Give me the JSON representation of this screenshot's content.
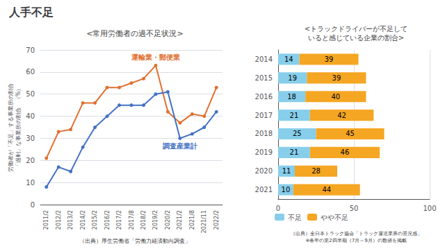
{
  "title": "人手不足",
  "chart_data": [
    {
      "type": "line",
      "title": "<常用労働者の過不足状況>",
      "ylabel": [
        "労働者が「不足」する事業所の割合",
        "「過剰」な事業所の割合　（%）"
      ],
      "source": "（出典）厚生労働省「労働力経済動向調査」",
      "categories": [
        "2011/2",
        "2012/2",
        "2013/2",
        "2014/2",
        "2015/2",
        "2016/2",
        "2017/2",
        "2017/8",
        "2018/2",
        "2019/2",
        "2020/2",
        "2021/2",
        "2021/8",
        "2021/11",
        "2022/2"
      ],
      "series": [
        {
          "name": "運輸業・郵便業",
          "color": "#e07030",
          "values": [
            21,
            33,
            34,
            46,
            46,
            53,
            53,
            55,
            57,
            63,
            42,
            37,
            41,
            40,
            53
          ]
        },
        {
          "name": "調査産業計",
          "color": "#4472c4",
          "values": [
            8,
            17,
            15,
            26,
            35,
            40,
            45,
            45,
            45,
            50,
            51,
            30,
            32,
            35,
            42
          ]
        }
      ],
      "marker": "circle",
      "ylim": [
        0,
        70
      ],
      "yticks": [
        0,
        10,
        20,
        30,
        40,
        50,
        60,
        70
      ],
      "grid": true
    },
    {
      "type": "bar",
      "orientation": "horizontal",
      "stacked": true,
      "title": "<トラックドライバーが不足して\nいると感じている企業の割合>",
      "source": "（出典）全日本トラック協会「トラック運送業界の景況感」\n※各年の第2四半期（7月～9月）の数値を掲載",
      "categories": [
        "2014",
        "2015",
        "2016",
        "2017",
        "2018",
        "2019",
        "2020",
        "2021"
      ],
      "series": [
        {
          "name": "不足",
          "color": "#87ceeb",
          "values": [
            14,
            19,
            18,
            21,
            25,
            21,
            11,
            10
          ]
        },
        {
          "name": "やや不足",
          "color": "#f5a623",
          "values": [
            39,
            39,
            40,
            42,
            45,
            46,
            28,
            44
          ]
        }
      ],
      "xlim": [
        0,
        100
      ],
      "xticks": [
        0,
        50,
        100
      ],
      "grid": true,
      "legend": "bottom",
      "data_labels": true
    }
  ]
}
